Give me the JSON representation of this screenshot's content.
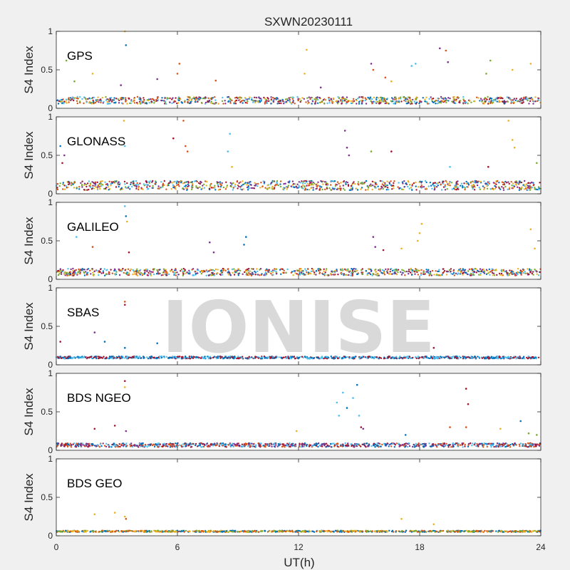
{
  "chart_data": {
    "type": "scatter",
    "title": "SXWN20230111",
    "xlabel": "UT(h)",
    "ylabel": "S4 Index",
    "xlim": [
      0,
      24
    ],
    "ylim": [
      0,
      1
    ],
    "xticks": [
      "0",
      "6",
      "12",
      "18",
      "24"
    ],
    "yticks": [
      "0",
      "0.5",
      "1"
    ],
    "watermark": "IONISE",
    "series_colors": [
      "#0072BD",
      "#D95319",
      "#EDB120",
      "#7E2F8E",
      "#77AC30",
      "#4DBEEE",
      "#A2142F"
    ],
    "panels": [
      {
        "label": "GPS",
        "points": [
          {
            "x": 0.5,
            "y": 0.62,
            "c": 4
          },
          {
            "x": 0.9,
            "y": 0.35,
            "c": 4
          },
          {
            "x": 1.8,
            "y": 0.45,
            "c": 2
          },
          {
            "x": 3.4,
            "y": 1.0,
            "c": 2
          },
          {
            "x": 3.45,
            "y": 0.82,
            "c": 0
          },
          {
            "x": 3.2,
            "y": 0.3,
            "c": 3
          },
          {
            "x": 6.1,
            "y": 0.58,
            "c": 1
          },
          {
            "x": 6.0,
            "y": 0.45,
            "c": 1
          },
          {
            "x": 5.0,
            "y": 0.38,
            "c": 3
          },
          {
            "x": 7.9,
            "y": 0.36,
            "c": 1
          },
          {
            "x": 12.4,
            "y": 0.76,
            "c": 2
          },
          {
            "x": 12.3,
            "y": 0.45,
            "c": 2
          },
          {
            "x": 13.1,
            "y": 0.27,
            "c": 3
          },
          {
            "x": 15.6,
            "y": 0.58,
            "c": 3
          },
          {
            "x": 15.7,
            "y": 0.5,
            "c": 1
          },
          {
            "x": 16.3,
            "y": 0.4,
            "c": 1
          },
          {
            "x": 16.6,
            "y": 0.35,
            "c": 2
          },
          {
            "x": 17.6,
            "y": 0.55,
            "c": 5
          },
          {
            "x": 17.8,
            "y": 0.58,
            "c": 5
          },
          {
            "x": 19.0,
            "y": 0.78,
            "c": 3
          },
          {
            "x": 19.3,
            "y": 0.75,
            "c": 1
          },
          {
            "x": 19.4,
            "y": 0.6,
            "c": 3
          },
          {
            "x": 21.5,
            "y": 0.62,
            "c": 4
          },
          {
            "x": 21.3,
            "y": 0.45,
            "c": 4
          },
          {
            "x": 22.6,
            "y": 0.5,
            "c": 2
          },
          {
            "x": 23.5,
            "y": 0.58,
            "c": 2
          }
        ]
      },
      {
        "label": "GLONASS",
        "points": [
          {
            "x": 0.2,
            "y": 0.62,
            "c": 0
          },
          {
            "x": 0.4,
            "y": 0.5,
            "c": 3
          },
          {
            "x": 0.3,
            "y": 0.4,
            "c": 6
          },
          {
            "x": 3.35,
            "y": 0.95,
            "c": 2
          },
          {
            "x": 3.4,
            "y": 0.62,
            "c": 5
          },
          {
            "x": 5.8,
            "y": 0.72,
            "c": 6
          },
          {
            "x": 6.3,
            "y": 0.95,
            "c": 1
          },
          {
            "x": 6.4,
            "y": 0.62,
            "c": 1
          },
          {
            "x": 6.5,
            "y": 0.55,
            "c": 1
          },
          {
            "x": 8.6,
            "y": 0.78,
            "c": 5
          },
          {
            "x": 8.5,
            "y": 0.55,
            "c": 5
          },
          {
            "x": 8.7,
            "y": 0.35,
            "c": 2
          },
          {
            "x": 14.3,
            "y": 0.82,
            "c": 3
          },
          {
            "x": 14.4,
            "y": 0.6,
            "c": 3
          },
          {
            "x": 14.5,
            "y": 0.5,
            "c": 3
          },
          {
            "x": 15.6,
            "y": 0.55,
            "c": 4
          },
          {
            "x": 16.6,
            "y": 0.55,
            "c": 6
          },
          {
            "x": 19.5,
            "y": 0.35,
            "c": 5
          },
          {
            "x": 21.4,
            "y": 0.35,
            "c": 6
          },
          {
            "x": 22.4,
            "y": 0.95,
            "c": 2
          },
          {
            "x": 22.6,
            "y": 0.7,
            "c": 2
          },
          {
            "x": 22.7,
            "y": 0.6,
            "c": 2
          },
          {
            "x": 23.8,
            "y": 0.4,
            "c": 4
          }
        ]
      },
      {
        "label": "GALILEO",
        "points": [
          {
            "x": 1.0,
            "y": 0.55,
            "c": 5
          },
          {
            "x": 1.8,
            "y": 0.42,
            "c": 1
          },
          {
            "x": 3.4,
            "y": 0.95,
            "c": 5
          },
          {
            "x": 3.45,
            "y": 0.82,
            "c": 0
          },
          {
            "x": 3.5,
            "y": 0.75,
            "c": 2
          },
          {
            "x": 3.6,
            "y": 0.35,
            "c": 6
          },
          {
            "x": 7.6,
            "y": 0.48,
            "c": 3
          },
          {
            "x": 7.8,
            "y": 0.35,
            "c": 3
          },
          {
            "x": 9.4,
            "y": 0.55,
            "c": 0
          },
          {
            "x": 9.3,
            "y": 0.45,
            "c": 0
          },
          {
            "x": 15.7,
            "y": 0.55,
            "c": 3
          },
          {
            "x": 15.8,
            "y": 0.42,
            "c": 3
          },
          {
            "x": 16.2,
            "y": 0.38,
            "c": 6
          },
          {
            "x": 17.1,
            "y": 0.4,
            "c": 2
          },
          {
            "x": 18.1,
            "y": 0.72,
            "c": 2
          },
          {
            "x": 18.0,
            "y": 0.6,
            "c": 2
          },
          {
            "x": 17.9,
            "y": 0.5,
            "c": 2
          },
          {
            "x": 23.5,
            "y": 0.65,
            "c": 2
          },
          {
            "x": 23.7,
            "y": 0.4,
            "c": 2
          }
        ]
      },
      {
        "label": "SBAS",
        "points": [
          {
            "x": 0.2,
            "y": 0.3,
            "c": 6
          },
          {
            "x": 1.9,
            "y": 0.42,
            "c": 3
          },
          {
            "x": 2.4,
            "y": 0.3,
            "c": 0
          },
          {
            "x": 3.4,
            "y": 0.82,
            "c": 1
          },
          {
            "x": 3.4,
            "y": 0.78,
            "c": 6
          },
          {
            "x": 3.4,
            "y": 0.22,
            "c": 0
          },
          {
            "x": 5.0,
            "y": 0.28,
            "c": 0
          },
          {
            "x": 18.7,
            "y": 0.22,
            "c": 6
          }
        ]
      },
      {
        "label": "BDS NGEO",
        "points": [
          {
            "x": 1.9,
            "y": 0.28,
            "c": 6
          },
          {
            "x": 2.9,
            "y": 0.32,
            "c": 6
          },
          {
            "x": 3.4,
            "y": 0.9,
            "c": 6
          },
          {
            "x": 3.4,
            "y": 0.82,
            "c": 2
          },
          {
            "x": 3.45,
            "y": 0.25,
            "c": 3
          },
          {
            "x": 11.9,
            "y": 0.25,
            "c": 2
          },
          {
            "x": 13.9,
            "y": 0.62,
            "c": 5
          },
          {
            "x": 14.0,
            "y": 0.45,
            "c": 5
          },
          {
            "x": 14.2,
            "y": 0.75,
            "c": 5
          },
          {
            "x": 14.4,
            "y": 0.55,
            "c": 0
          },
          {
            "x": 14.7,
            "y": 0.68,
            "c": 5
          },
          {
            "x": 14.9,
            "y": 0.85,
            "c": 0
          },
          {
            "x": 15.0,
            "y": 0.45,
            "c": 5
          },
          {
            "x": 15.1,
            "y": 0.3,
            "c": 6
          },
          {
            "x": 15.2,
            "y": 0.28,
            "c": 3
          },
          {
            "x": 17.3,
            "y": 0.2,
            "c": 0
          },
          {
            "x": 19.5,
            "y": 0.3,
            "c": 1
          },
          {
            "x": 20.3,
            "y": 0.8,
            "c": 6
          },
          {
            "x": 20.4,
            "y": 0.6,
            "c": 6
          },
          {
            "x": 20.3,
            "y": 0.3,
            "c": 1
          },
          {
            "x": 22.0,
            "y": 0.28,
            "c": 2
          },
          {
            "x": 23.0,
            "y": 0.38,
            "c": 0
          },
          {
            "x": 23.4,
            "y": 0.22,
            "c": 4
          },
          {
            "x": 23.8,
            "y": 0.2,
            "c": 4
          }
        ]
      },
      {
        "label": "BDS GEO",
        "points": [
          {
            "x": 1.9,
            "y": 0.28,
            "c": 2
          },
          {
            "x": 2.9,
            "y": 0.3,
            "c": 2
          },
          {
            "x": 3.4,
            "y": 0.25,
            "c": 2
          },
          {
            "x": 3.45,
            "y": 0.22,
            "c": 1
          },
          {
            "x": 17.1,
            "y": 0.22,
            "c": 2
          },
          {
            "x": 18.7,
            "y": 0.15,
            "c": 2
          }
        ]
      }
    ]
  }
}
